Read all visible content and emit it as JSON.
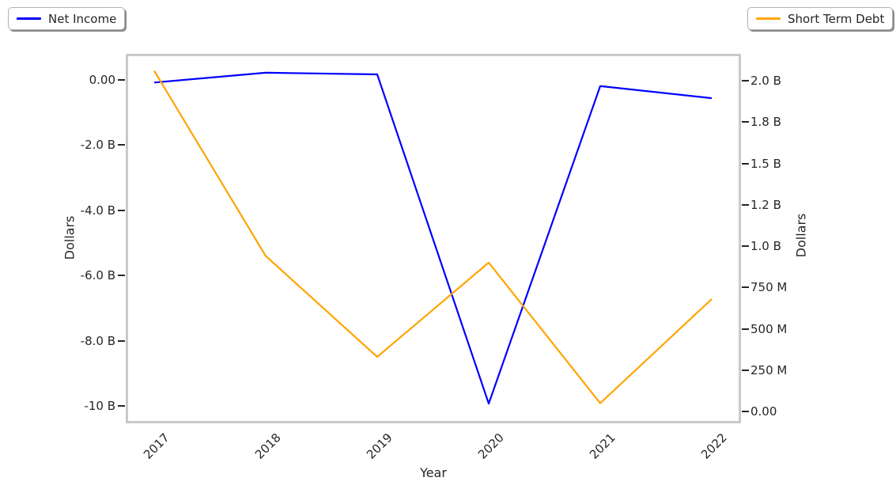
{
  "legends": [
    {
      "label": "Net Income",
      "color": "#0000ff"
    },
    {
      "label": "Short Term Debt",
      "color": "#ffa500"
    }
  ],
  "chart_data": {
    "type": "line",
    "title": "",
    "xlabel": "Year",
    "x": [
      "2017",
      "2018",
      "2019",
      "2020",
      "2021",
      "2022"
    ],
    "unit_note": "values estimated from plot, in billions of US dollars",
    "series": [
      {
        "name": "Net Income",
        "color": "#0000ff",
        "axis": "left",
        "values": [
          -0.08,
          0.22,
          0.17,
          -9.93,
          -0.19,
          -0.56
        ]
      },
      {
        "name": "Short Term Debt",
        "color": "#ffa500",
        "axis": "right",
        "values": [
          2.06,
          0.94,
          0.33,
          0.9,
          0.05,
          0.68
        ]
      }
    ],
    "left_axis": {
      "label": "Dollars",
      "ticks": [
        {
          "label": "0.00",
          "value": 0
        },
        {
          "label": "-2.0 B",
          "value": -2
        },
        {
          "label": "-4.0 B",
          "value": -4
        },
        {
          "label": "-6.0 B",
          "value": -6
        },
        {
          "label": "-8.0 B",
          "value": -8
        },
        {
          "label": "-10 B",
          "value": -10
        }
      ]
    },
    "right_axis": {
      "label": "Dollars",
      "ticks": [
        {
          "label": "2.0 B",
          "value": 2.0
        },
        {
          "label": "1.8 B",
          "value": 1.75
        },
        {
          "label": "1.5 B",
          "value": 1.5
        },
        {
          "label": "1.2 B",
          "value": 1.25
        },
        {
          "label": "1.0 B",
          "value": 1.0
        },
        {
          "label": "750 M",
          "value": 0.75
        },
        {
          "label": "500 M",
          "value": 0.5
        },
        {
          "label": "250 M",
          "value": 0.25
        },
        {
          "label": "0.00",
          "value": 0.0
        }
      ]
    },
    "legend_position": {
      "net_income": "top-left",
      "short_term_debt": "top-right"
    },
    "grid": "off"
  }
}
